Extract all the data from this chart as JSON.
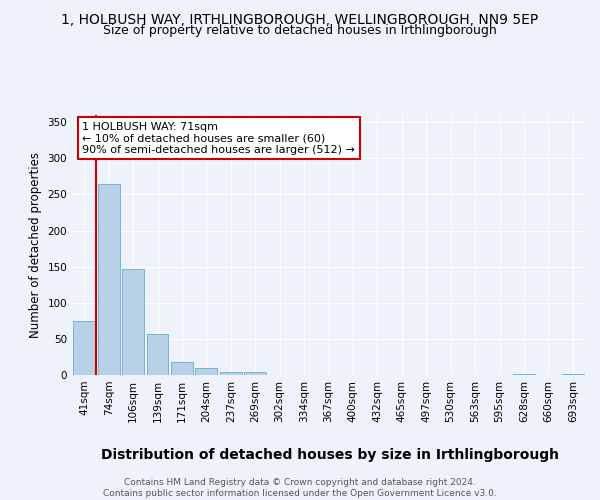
{
  "title1": "1, HOLBUSH WAY, IRTHLINGBOROUGH, WELLINGBOROUGH, NN9 5EP",
  "title2": "Size of property relative to detached houses in Irthlingborough",
  "xlabel": "Distribution of detached houses by size in Irthlingborough",
  "ylabel": "Number of detached properties",
  "categories": [
    "41sqm",
    "74sqm",
    "106sqm",
    "139sqm",
    "171sqm",
    "204sqm",
    "237sqm",
    "269sqm",
    "302sqm",
    "334sqm",
    "367sqm",
    "400sqm",
    "432sqm",
    "465sqm",
    "497sqm",
    "530sqm",
    "563sqm",
    "595sqm",
    "628sqm",
    "660sqm",
    "693sqm"
  ],
  "values": [
    75,
    265,
    147,
    57,
    18,
    10,
    4,
    4,
    0,
    0,
    0,
    0,
    0,
    0,
    0,
    0,
    0,
    0,
    2,
    0,
    2
  ],
  "bar_color": "#b8d0e8",
  "bar_edge_color": "#6aaad4",
  "annotation_text1": "1 HOLBUSH WAY: 71sqm",
  "annotation_text2": "← 10% of detached houses are smaller (60)",
  "annotation_text3": "90% of semi-detached houses are larger (512) →",
  "annotation_box_color": "#ffffff",
  "annotation_box_edge": "#cc0000",
  "vline_color": "#cc0000",
  "background_color": "#eef2fa",
  "grid_color": "#ffffff",
  "ylim": [
    0,
    360
  ],
  "yticks": [
    0,
    50,
    100,
    150,
    200,
    250,
    300,
    350
  ],
  "title1_fontsize": 10,
  "title2_fontsize": 9,
  "xlabel_fontsize": 10,
  "ylabel_fontsize": 8.5,
  "tick_fontsize": 7.5,
  "annotation_fontsize": 8,
  "footer_fontsize": 6.5
}
